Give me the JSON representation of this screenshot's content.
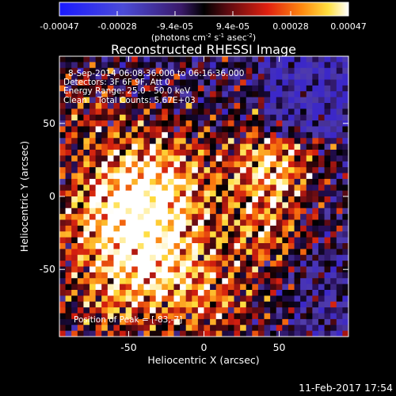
{
  "colorbar": {
    "ticks": [
      "-0.00047",
      "-0.00028",
      "-9.4e-05",
      "9.4e-05",
      "0.00028",
      "0.00047"
    ],
    "units_main": "(photons cm",
    "units_e1": "-2",
    "units_mid": " s",
    "units_e2": "-1",
    "units_end": " asec",
    "units_e3": "-2",
    "units_close": ")"
  },
  "chart_data": {
    "type": "heatmap",
    "title": "Reconstructed RHESSI Image",
    "xlabel": "Heliocentric X (arcsec)",
    "ylabel": "Heliocentric Y (arcsec)",
    "xlim": [
      -96,
      96
    ],
    "ylim": [
      -96,
      96
    ],
    "xticks": [
      -50,
      0,
      50
    ],
    "yticks": [
      -50,
      0,
      50
    ],
    "zlim": [
      -0.00047,
      0.00047
    ],
    "colormap": "rainbow-like: black, purple, red, orange, yellow, white",
    "peak_position": [
      -83,
      -7
    ],
    "annotations": {
      "line1": "8-Sep-2014 06:08:36.000 to 06:16:36.000",
      "line2": "Detectors: 3F 6F 9F, Att 0",
      "line3": "Energy Range: 25.0 - 50.0 keV",
      "line4": "Clean    Total Counts: 5.67E+03",
      "peak": "Position of Peak = [-83,-7]"
    }
  },
  "footer": {
    "timestamp": "11-Feb-2017 17:54"
  }
}
